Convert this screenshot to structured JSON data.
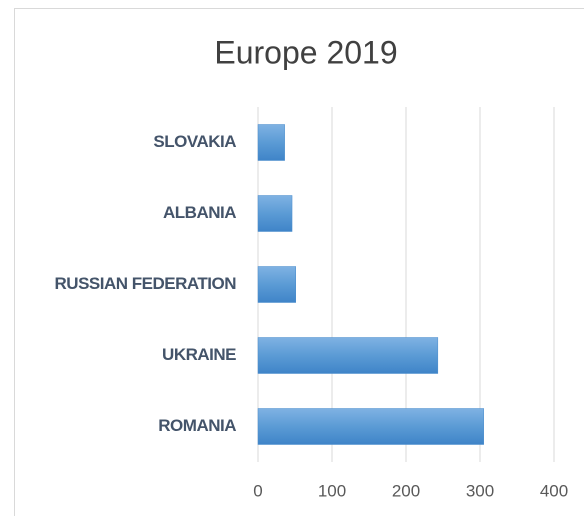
{
  "chart_data": {
    "type": "barh",
    "title": "Europe 2019",
    "categories": [
      "SLOVAKIA",
      "ALBANIA",
      "RUSSIAN FEDERATION",
      "UKRAINE",
      "ROMANIA"
    ],
    "values": [
      36,
      46,
      51,
      243,
      305
    ],
    "color": "#5b9bd5",
    "xlim": [
      0,
      400
    ],
    "xticks": [
      0,
      100,
      200,
      300,
      400
    ],
    "grid": true
  }
}
